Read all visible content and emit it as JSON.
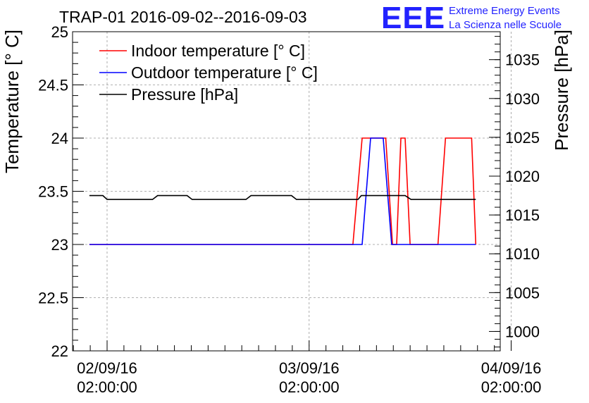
{
  "chart_data": {
    "type": "line",
    "title": "TRAP-01 2016-09-02--2016-09-03",
    "ylabel_left": "Temperature [° C]",
    "ylabel_right": "Pressure [hPa]",
    "x_unit": "hours since 02/09/16 00:00:00",
    "xlim": [
      -2.1,
      48.7
    ],
    "ylim_left": [
      22,
      25
    ],
    "ylim_right": [
      997.5,
      1038.6
    ],
    "x_ticks": [
      {
        "x": 2,
        "date": "02/09/16",
        "time": "02:00:00"
      },
      {
        "x": 26,
        "date": "03/09/16",
        "time": "02:00:00"
      },
      {
        "x": 50,
        "date": "04/09/16",
        "time": "02:00:00"
      }
    ],
    "y_ticks_left": [
      "22",
      "22.5",
      "23",
      "23.5",
      "24",
      "24.5",
      "25"
    ],
    "y_ticks_right": [
      "1000",
      "1005",
      "1010",
      "1015",
      "1020",
      "1025",
      "1030",
      "1035"
    ],
    "grid": true,
    "legend_position": "top-left",
    "series": [
      {
        "name": "Indoor temperature [° C]",
        "axis": "left",
        "color": "#ff0000",
        "x": [
          -0.1,
          31.2,
          32.3,
          35.1,
          35.9,
          36.4,
          36.9,
          37.4,
          38.0,
          41.3,
          42.2,
          45.3,
          45.8
        ],
        "y": [
          23,
          23,
          24,
          24,
          23,
          23,
          24,
          24,
          23,
          23,
          24,
          24,
          23
        ]
      },
      {
        "name": "Outdoor temperature [° C]",
        "axis": "left",
        "color": "#0000ff",
        "x": [
          -0.1,
          32.3,
          33.3,
          34.8,
          35.8,
          45.8
        ],
        "y": [
          23,
          23,
          24,
          24,
          23,
          23
        ]
      },
      {
        "name": "Pressure [hPa]",
        "axis": "right",
        "color": "#000000",
        "x": [
          -0.1,
          1.5,
          2.0,
          7.4,
          8.0,
          11.5,
          12.1,
          18.5,
          19.1,
          23.9,
          24.5,
          31.8,
          32.2,
          37.4,
          38.1,
          45.8
        ],
        "y": [
          1017.5,
          1017.5,
          1017.0,
          1017.0,
          1017.5,
          1017.5,
          1017.0,
          1017.0,
          1017.5,
          1017.5,
          1017.0,
          1017.0,
          1017.5,
          1017.5,
          1017.0,
          1017.0
        ]
      }
    ]
  },
  "branding": {
    "logo": "EEE",
    "line1": "Extreme Energy Events",
    "line2": "La Scienza nelle Scuole"
  }
}
